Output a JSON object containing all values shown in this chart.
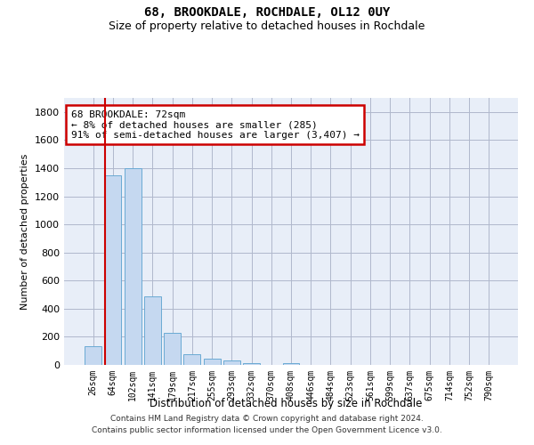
{
  "title": "68, BROOKDALE, ROCHDALE, OL12 0UY",
  "subtitle": "Size of property relative to detached houses in Rochdale",
  "xlabel": "Distribution of detached houses by size in Rochdale",
  "ylabel": "Number of detached properties",
  "bar_color": "#c5d8f0",
  "bar_edge_color": "#6aaad4",
  "background_color": "#e8eef8",
  "grid_color": "#b0b8cc",
  "categories": [
    "26sqm",
    "64sqm",
    "102sqm",
    "141sqm",
    "179sqm",
    "217sqm",
    "255sqm",
    "293sqm",
    "332sqm",
    "370sqm",
    "408sqm",
    "446sqm",
    "484sqm",
    "523sqm",
    "561sqm",
    "599sqm",
    "637sqm",
    "675sqm",
    "714sqm",
    "752sqm",
    "790sqm"
  ],
  "values": [
    135,
    1350,
    1400,
    490,
    225,
    75,
    45,
    30,
    15,
    0,
    15,
    0,
    0,
    0,
    0,
    0,
    0,
    0,
    0,
    0,
    0
  ],
  "ylim": [
    0,
    1900
  ],
  "yticks": [
    0,
    200,
    400,
    600,
    800,
    1000,
    1200,
    1400,
    1600,
    1800
  ],
  "red_line_x": 0.58,
  "annotation_text": "68 BROOKDALE: 72sqm\n← 8% of detached houses are smaller (285)\n91% of semi-detached houses are larger (3,407) →",
  "annotation_box_color": "#cc0000",
  "footer_line1": "Contains HM Land Registry data © Crown copyright and database right 2024.",
  "footer_line2": "Contains public sector information licensed under the Open Government Licence v3.0."
}
